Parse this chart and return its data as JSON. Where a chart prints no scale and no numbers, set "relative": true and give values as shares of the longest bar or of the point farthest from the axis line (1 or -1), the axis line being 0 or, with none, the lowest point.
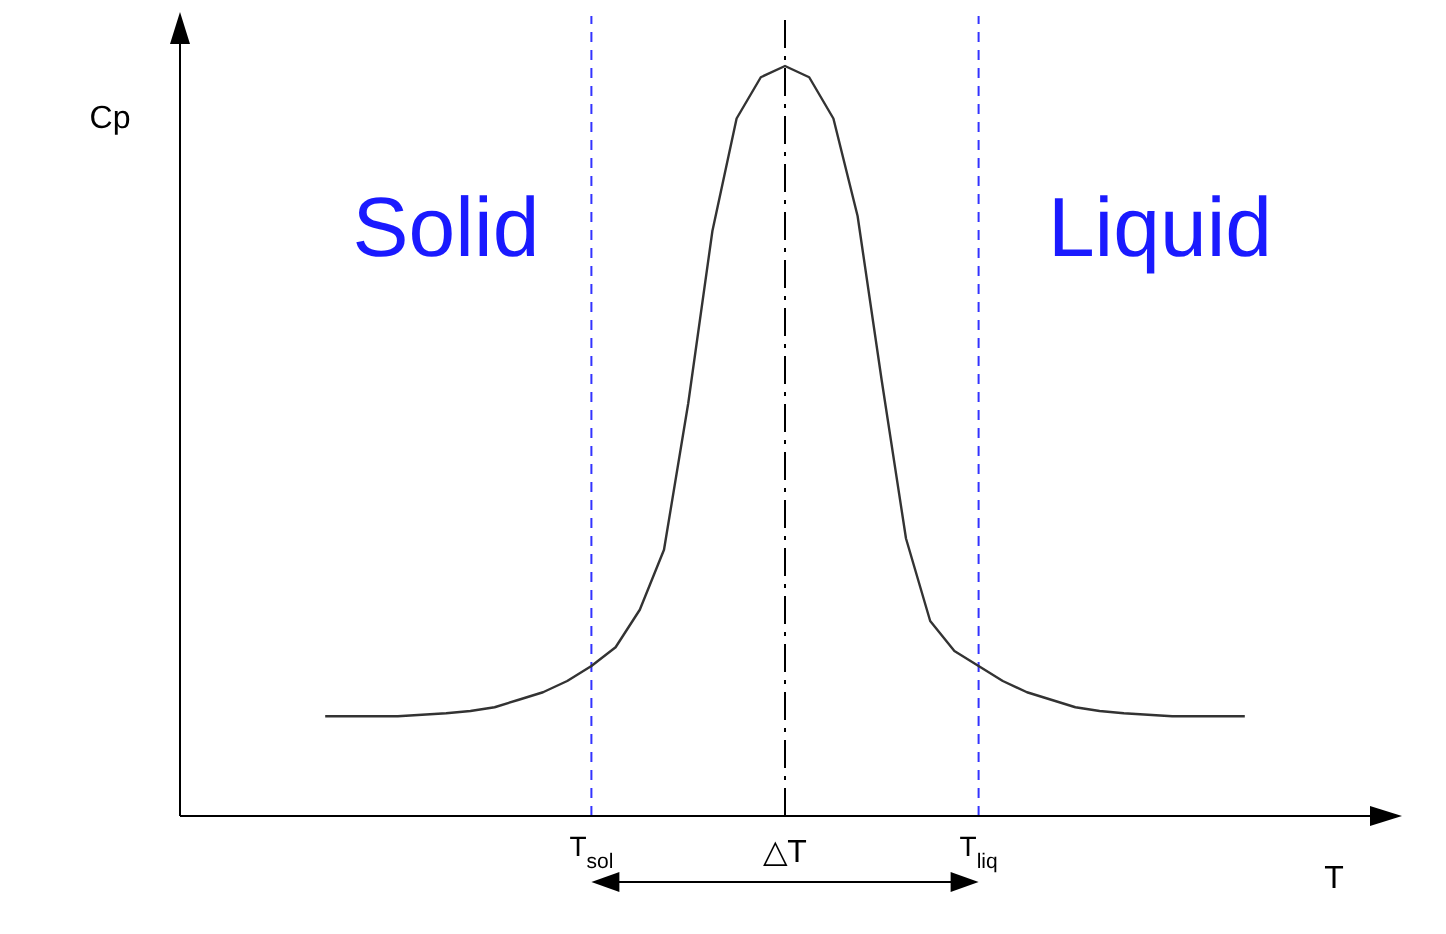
{
  "chart_data": {
    "type": "line",
    "relative": true,
    "xlabel": "T",
    "ylabel": "Cp",
    "categories": [
      null,
      null,
      null,
      null,
      null,
      null,
      null,
      null,
      null,
      null,
      null,
      null,
      null,
      null,
      null,
      null,
      null,
      "T$_{sol}$",
      null,
      null,
      null,
      null,
      null,
      null,
      null,
      null,
      null,
      null,
      null,
      null,
      null,
      null,
      null,
      "T$_{liq}$",
      null,
      null,
      null,
      null,
      null,
      null,
      null,
      null,
      null,
      null,
      null,
      null,
      null,
      null,
      null,
      null,
      null
    ],
    "values": [
      null,
      null,
      null,
      null,
      null,
      null,
      0.133,
      0.133,
      0.133,
      0.133,
      0.135,
      0.137,
      0.14,
      0.145,
      0.155,
      0.165,
      0.18,
      0.2,
      0.225,
      0.275,
      0.355,
      0.55,
      0.78,
      0.93,
      0.985,
      1,
      0.985,
      0.93,
      0.8,
      0.58,
      0.37,
      0.26,
      0.22,
      0.2,
      0.18,
      0.165,
      0.155,
      0.145,
      0.14,
      0.137,
      0.135,
      0.133,
      0.133,
      0.133,
      0.133,
      null,
      null,
      null,
      null,
      null,
      null
    ],
    "color": "#333333",
    "marker": "none",
    "line_style": "solid",
    "ref_lines": [
      {
        "axis": "x",
        "value": "T$_{sol}$",
        "label": null,
        "color": "#3333ff",
        "line_style": "dashed"
      },
      {
        "axis": "x",
        "value": "T$_{liq}$",
        "label": null,
        "color": "#3333ff",
        "line_style": "dashed"
      },
      {
        "axis": "x",
        "value": null,
        "label": null,
        "color": "#000000",
        "line_style": "dashdot"
      }
    ],
    "annotations": [
      "Solid",
      "Liquid",
      "△T"
    ]
  }
}
